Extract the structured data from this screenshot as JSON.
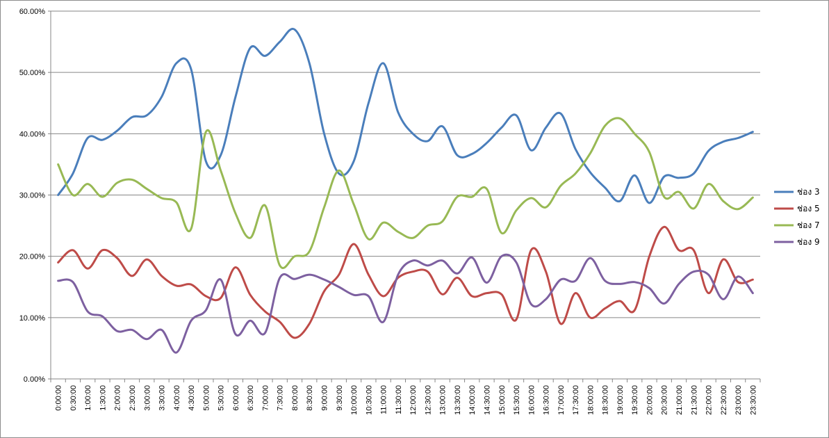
{
  "chart_data": {
    "type": "line",
    "title": "",
    "xlabel": "",
    "ylabel": "",
    "ylim": [
      0,
      0.6
    ],
    "y_ticks": [
      0,
      0.1,
      0.2,
      0.3,
      0.4,
      0.5,
      0.6
    ],
    "y_tick_labels": [
      "0.00%",
      "10.00%",
      "20.00%",
      "30.00%",
      "40.00%",
      "50.00%",
      "60.00%"
    ],
    "grid": "horizontal",
    "legend_position": "right",
    "x": [
      "0:00:00",
      "0:30:00",
      "1:00:00",
      "1:30:00",
      "2:00:00",
      "2:30:00",
      "3:00:00",
      "3:30:00",
      "4:00:00",
      "4:30:00",
      "5:00:00",
      "5:30:00",
      "6:00:00",
      "6:30:00",
      "7:00:00",
      "7:30:00",
      "8:00:00",
      "8:30:00",
      "9:00:00",
      "9:30:00",
      "10:00:00",
      "10:30:00",
      "11:00:00",
      "11:30:00",
      "12:00:00",
      "12:30:00",
      "13:00:00",
      "13:30:00",
      "14:00:00",
      "14:30:00",
      "15:00:00",
      "15:30:00",
      "16:00:00",
      "16:30:00",
      "17:00:00",
      "17:30:00",
      "18:00:00",
      "18:30:00",
      "19:00:00",
      "19:30:00",
      "20:00:00",
      "20:30:00",
      "21:00:00",
      "21:30:00",
      "22:00:00",
      "22:30:00",
      "23:00:00",
      "23:30:00"
    ],
    "series": [
      {
        "name": "ช่อง 3",
        "color": "#4a7ebb",
        "values": [
          0.3,
          0.335,
          0.393,
          0.39,
          0.405,
          0.427,
          0.43,
          0.46,
          0.515,
          0.505,
          0.355,
          0.365,
          0.46,
          0.54,
          0.527,
          0.55,
          0.57,
          0.515,
          0.4,
          0.335,
          0.355,
          0.45,
          0.515,
          0.435,
          0.4,
          0.388,
          0.412,
          0.365,
          0.367,
          0.385,
          0.41,
          0.43,
          0.373,
          0.41,
          0.433,
          0.375,
          0.337,
          0.312,
          0.29,
          0.332,
          0.287,
          0.33,
          0.328,
          0.335,
          0.372,
          0.387,
          0.393,
          0.403
        ]
      },
      {
        "name": "ช่อง 5",
        "color": "#be4b48",
        "values": [
          0.19,
          0.21,
          0.18,
          0.21,
          0.197,
          0.168,
          0.195,
          0.168,
          0.152,
          0.154,
          0.135,
          0.132,
          0.182,
          0.137,
          0.11,
          0.093,
          0.067,
          0.09,
          0.143,
          0.17,
          0.22,
          0.17,
          0.135,
          0.165,
          0.175,
          0.175,
          0.138,
          0.165,
          0.135,
          0.14,
          0.138,
          0.097,
          0.21,
          0.175,
          0.09,
          0.14,
          0.1,
          0.115,
          0.127,
          0.112,
          0.2,
          0.248,
          0.21,
          0.21,
          0.14,
          0.195,
          0.158,
          0.162
        ]
      },
      {
        "name": "ช่อง 7",
        "color": "#98b954",
        "values": [
          0.35,
          0.3,
          0.318,
          0.297,
          0.32,
          0.325,
          0.31,
          0.295,
          0.288,
          0.245,
          0.403,
          0.34,
          0.27,
          0.23,
          0.283,
          0.185,
          0.2,
          0.208,
          0.28,
          0.34,
          0.285,
          0.228,
          0.255,
          0.24,
          0.23,
          0.25,
          0.257,
          0.297,
          0.297,
          0.31,
          0.238,
          0.275,
          0.295,
          0.28,
          0.315,
          0.335,
          0.368,
          0.413,
          0.425,
          0.4,
          0.37,
          0.297,
          0.305,
          0.278,
          0.318,
          0.29,
          0.277,
          0.296
        ]
      },
      {
        "name": "ช่อง 9",
        "color": "#7d60a0",
        "values": [
          0.16,
          0.158,
          0.11,
          0.102,
          0.078,
          0.08,
          0.065,
          0.08,
          0.043,
          0.095,
          0.112,
          0.162,
          0.073,
          0.095,
          0.075,
          0.165,
          0.163,
          0.17,
          0.162,
          0.15,
          0.137,
          0.135,
          0.093,
          0.17,
          0.193,
          0.185,
          0.193,
          0.172,
          0.198,
          0.157,
          0.2,
          0.19,
          0.122,
          0.13,
          0.162,
          0.16,
          0.197,
          0.16,
          0.155,
          0.158,
          0.148,
          0.123,
          0.155,
          0.175,
          0.17,
          0.13,
          0.167,
          0.14
        ]
      }
    ]
  }
}
